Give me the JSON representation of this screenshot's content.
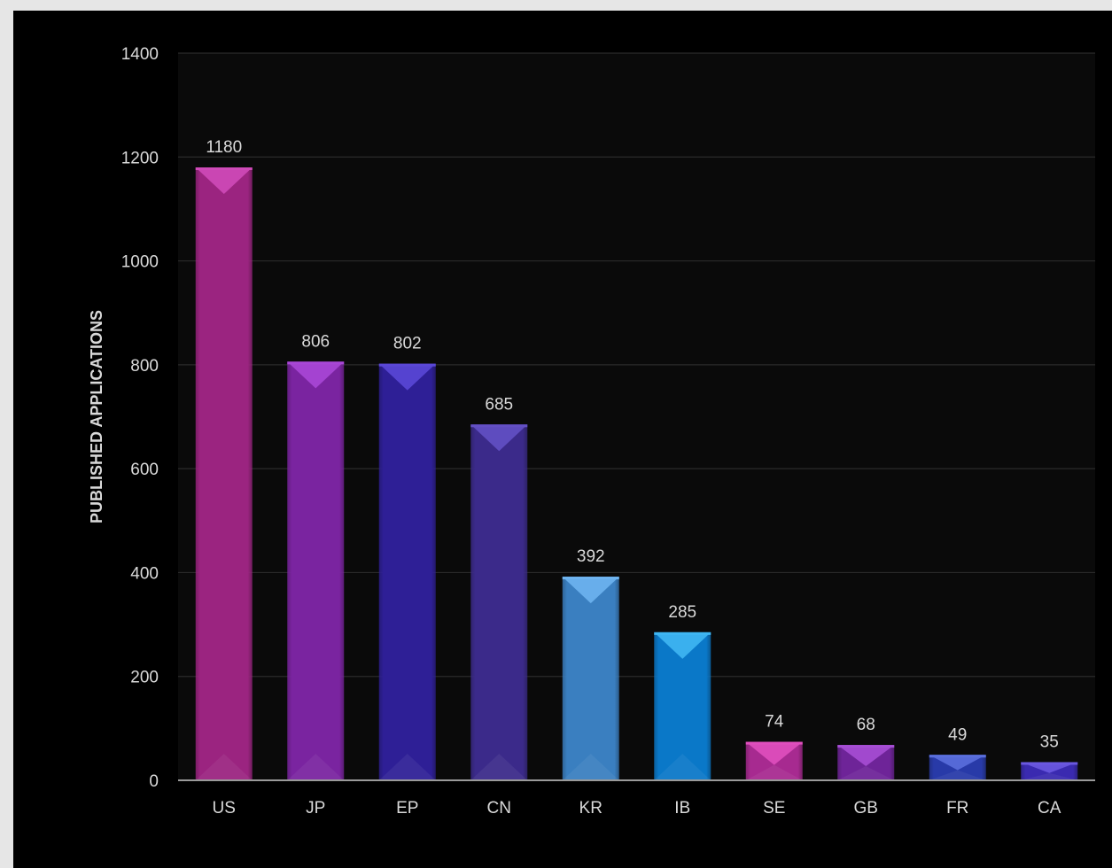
{
  "chart_data": {
    "type": "bar",
    "title": "",
    "xlabel": "",
    "ylabel": "PUBLISHED APPLICATIONS",
    "categories": [
      "US",
      "JP",
      "EP",
      "CN",
      "KR",
      "IB",
      "SE",
      "GB",
      "FR",
      "CA"
    ],
    "values": [
      1180,
      806,
      802,
      685,
      392,
      285,
      74,
      68,
      49,
      35
    ],
    "value_labels": [
      "1180",
      "806",
      "802",
      "685",
      "392",
      "285",
      "74",
      "68",
      "49",
      "35"
    ],
    "ylim": [
      0,
      1400
    ],
    "yticks": [
      0,
      200,
      400,
      600,
      800,
      1000,
      1200,
      1400
    ],
    "ytick_labels": [
      "0",
      "200",
      "400",
      "600",
      "800",
      "1000",
      "1200",
      "1400"
    ],
    "grid": true,
    "legend": "none",
    "background": "#0a0a0a",
    "bar_colors": [
      "#9b2480",
      "#7a24a0",
      "#2e1f96",
      "#3b2a8a",
      "#3a7fc0",
      "#0a78c8",
      "#a72a90",
      "#6e2498",
      "#283aa8",
      "#3a2ab0"
    ],
    "bar_cap_colors": [
      "#cf4ab8",
      "#a847d6",
      "#5a47d6",
      "#6350c4",
      "#6eb4f0",
      "#3fb6f2",
      "#e04fbe",
      "#a64ed4",
      "#5a6fdc",
      "#6a58e0"
    ]
  }
}
